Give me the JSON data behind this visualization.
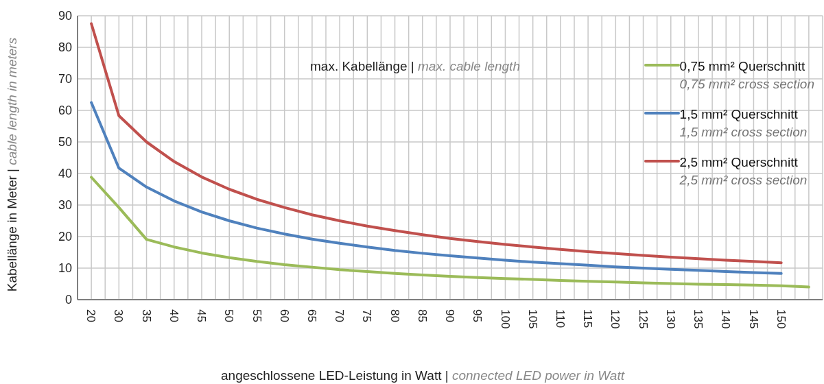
{
  "chart_data": {
    "type": "line",
    "title": "max. Kabellänge | max. cable length",
    "xlabel": "angeschlossene LED-Leistung in Watt | connected LED power in Watt",
    "ylabel": "Kabellänge in Meter | cable length in meters",
    "categories": [
      "20",
      "30",
      "35",
      "40",
      "45",
      "50",
      "55",
      "60",
      "65",
      "70",
      "75",
      "80",
      "85",
      "90",
      "95",
      "100",
      "105",
      "110",
      "115",
      "120",
      "125",
      "130",
      "135",
      "140",
      "145",
      "150",
      null
    ],
    "series": [
      {
        "name": "0,75 mm² Querschnitt\n0,75 mm² cross section",
        "color": "#9bbb59",
        "values": [
          38.8,
          29.2,
          19.1,
          16.7,
          14.8,
          13.3,
          12.1,
          11.1,
          10.3,
          9.5,
          8.9,
          8.3,
          7.8,
          7.4,
          7,
          6.7,
          6.4,
          6.1,
          5.8,
          5.6,
          5.3,
          5.1,
          4.9,
          4.8,
          4.6,
          4.4,
          4
        ]
      },
      {
        "name": "1,5 mm² Querschnitt\n1,5 mm² cross section",
        "color": "#4f81bd",
        "values": [
          62.5,
          41.7,
          35.7,
          31.3,
          27.8,
          25,
          22.7,
          20.8,
          19.2,
          17.9,
          16.7,
          15.6,
          14.7,
          13.9,
          13.2,
          12.5,
          11.9,
          11.4,
          10.9,
          10.4,
          10,
          9.6,
          9.3,
          8.9,
          8.6,
          8.3,
          null
        ]
      },
      {
        "name": "2,5 mm² Querschnitt\n2,5 mm² cross section",
        "color": "#c0504d",
        "values": [
          87.5,
          58.3,
          50,
          43.8,
          38.9,
          35,
          31.8,
          29.2,
          26.9,
          25,
          23.3,
          21.9,
          20.6,
          19.4,
          18.4,
          17.5,
          16.7,
          15.9,
          15.2,
          14.6,
          14,
          13.5,
          13,
          12.5,
          12.1,
          11.7,
          null
        ]
      }
    ],
    "ylim": [
      0,
      90
    ],
    "yticks": [
      0,
      10,
      20,
      30,
      40,
      50,
      60,
      70,
      80,
      90
    ],
    "grid": true,
    "legend": "top right",
    "line_style": "solid"
  }
}
